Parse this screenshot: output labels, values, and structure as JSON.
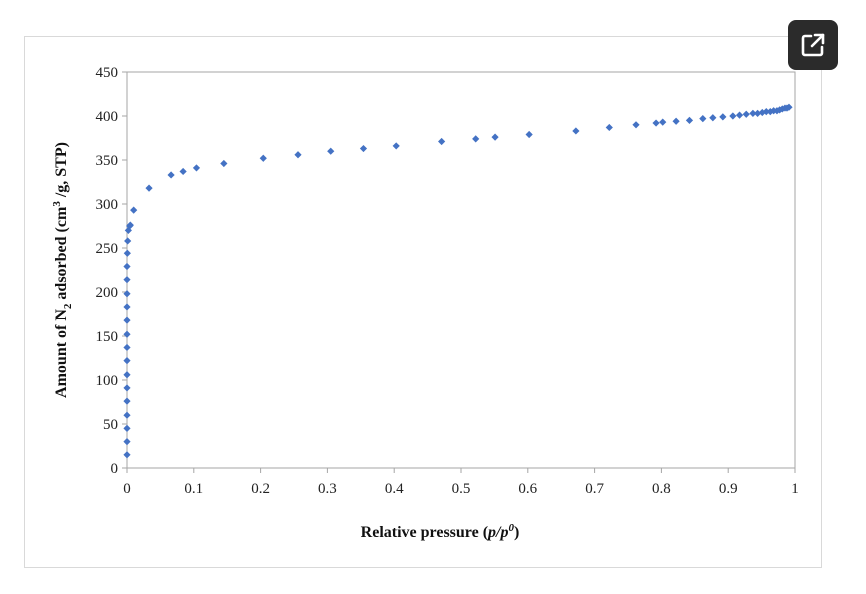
{
  "ui": {
    "expand_icon": "open-in-new-icon",
    "colors": {
      "button_bg": "#2b2b2b",
      "marker": "#4472C4",
      "axis": "#a6a6a6"
    }
  },
  "chart_data": {
    "type": "scatter",
    "xlabel": {
      "text": "Relative pressure (",
      "italic": "p/p",
      "sup": "0",
      "close": ")"
    },
    "ylabel": {
      "pre": "Amount of N",
      "sub": "2",
      "mid": " adsorbed  (cm",
      "sup": "3",
      "post": " /g, STP)"
    },
    "xlim": [
      0,
      1
    ],
    "ylim": [
      0,
      450
    ],
    "xticks": [
      0,
      0.1,
      0.2,
      0.3,
      0.4,
      0.5,
      0.6,
      0.7,
      0.8,
      0.9,
      1
    ],
    "xtick_labels": [
      "0",
      "0.1",
      "0.2",
      "0.3",
      "0.4",
      "0.5",
      "0.6",
      "0.7",
      "0.8",
      "0.9",
      "1"
    ],
    "yticks": [
      0,
      50,
      100,
      150,
      200,
      250,
      300,
      350,
      400,
      450
    ],
    "ytick_labels": [
      "0",
      "50",
      "100",
      "150",
      "200",
      "250",
      "300",
      "350",
      "400",
      "450"
    ],
    "grid": false,
    "legend": "none",
    "marker": "diamond",
    "series": [
      {
        "color": "#4472C4",
        "points": [
          [
            0.0,
            15
          ],
          [
            0.0,
            30
          ],
          [
            0.0,
            45
          ],
          [
            0.0,
            60
          ],
          [
            0.0,
            76
          ],
          [
            0.0,
            91
          ],
          [
            0.0,
            106
          ],
          [
            0.0,
            122
          ],
          [
            0.0,
            137
          ],
          [
            0.0,
            152
          ],
          [
            0.0,
            168
          ],
          [
            0.0,
            183
          ],
          [
            0.0,
            198
          ],
          [
            0.0,
            214
          ],
          [
            0.0,
            229
          ],
          [
            0.0005,
            244
          ],
          [
            0.001,
            258
          ],
          [
            0.002,
            270
          ],
          [
            0.004,
            275
          ],
          [
            0.005,
            276
          ],
          [
            0.01,
            293
          ],
          [
            0.033,
            318
          ],
          [
            0.066,
            333
          ],
          [
            0.084,
            337
          ],
          [
            0.104,
            341
          ],
          [
            0.145,
            346
          ],
          [
            0.204,
            352
          ],
          [
            0.256,
            356
          ],
          [
            0.305,
            360
          ],
          [
            0.354,
            363
          ],
          [
            0.403,
            366
          ],
          [
            0.471,
            371
          ],
          [
            0.522,
            374
          ],
          [
            0.551,
            376
          ],
          [
            0.602,
            379
          ],
          [
            0.672,
            383
          ],
          [
            0.722,
            387
          ],
          [
            0.762,
            390
          ],
          [
            0.792,
            392
          ],
          [
            0.802,
            393
          ],
          [
            0.822,
            394
          ],
          [
            0.842,
            395
          ],
          [
            0.862,
            397
          ],
          [
            0.877,
            398
          ],
          [
            0.892,
            399
          ],
          [
            0.907,
            400
          ],
          [
            0.917,
            401
          ],
          [
            0.927,
            402
          ],
          [
            0.937,
            403
          ],
          [
            0.944,
            403
          ],
          [
            0.951,
            404
          ],
          [
            0.957,
            405
          ],
          [
            0.963,
            405
          ],
          [
            0.968,
            406
          ],
          [
            0.973,
            406
          ],
          [
            0.977,
            407
          ],
          [
            0.981,
            408
          ],
          [
            0.985,
            409
          ],
          [
            0.988,
            409
          ],
          [
            0.991,
            410
          ]
        ]
      }
    ]
  }
}
